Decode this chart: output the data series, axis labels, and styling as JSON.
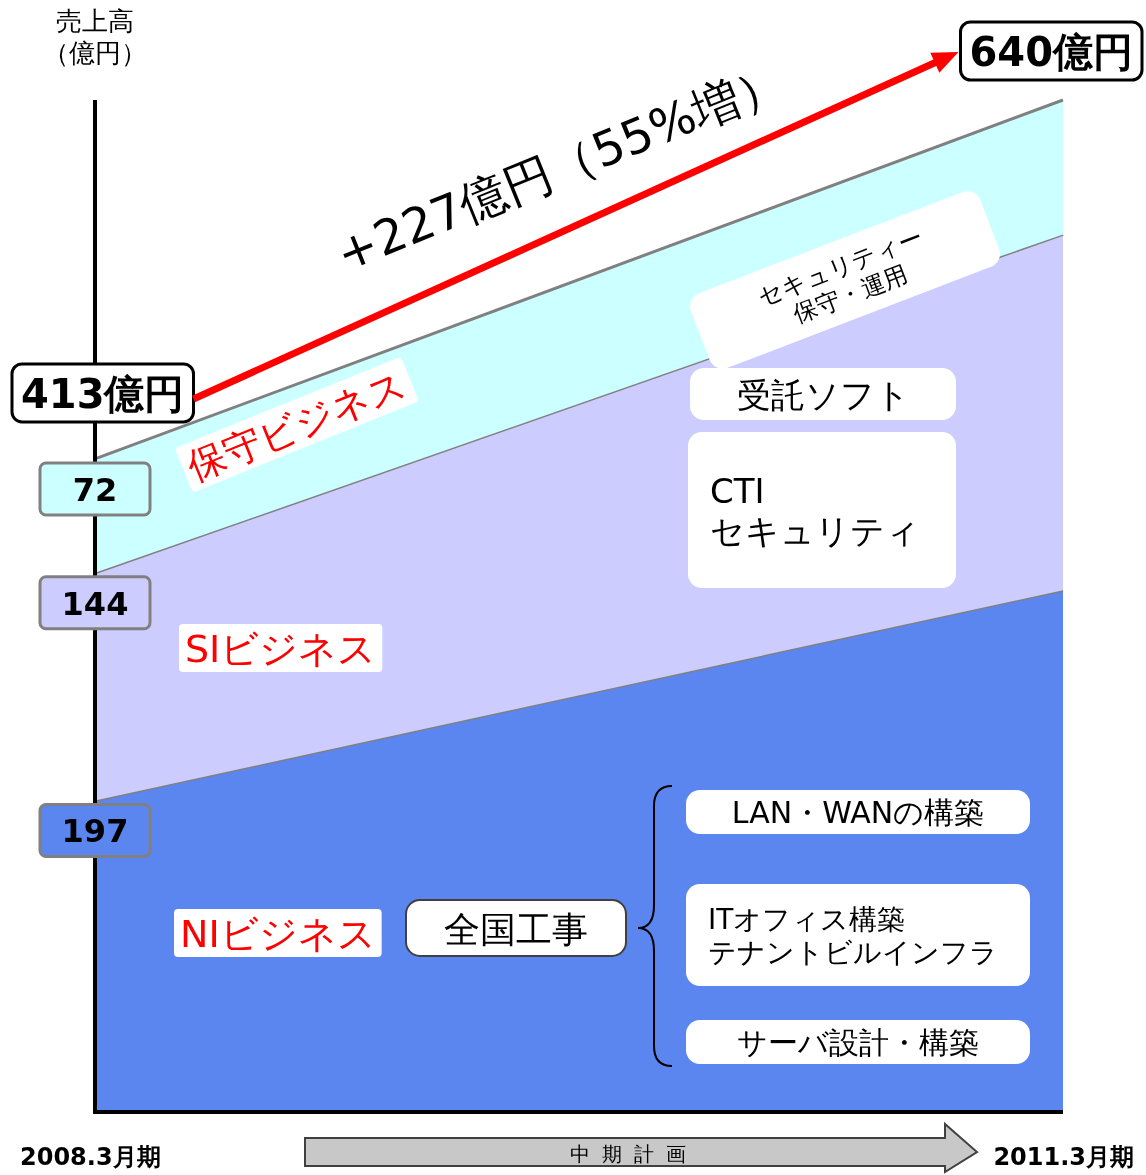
{
  "chart_data": {
    "type": "area",
    "stacked": true,
    "ylabel": "売上高（億円）",
    "categories": [
      "2008.3月期",
      "2011.3月期"
    ],
    "ylim": [
      0,
      640
    ],
    "series": [
      {
        "name": "NIビジネス",
        "color": "#5b86f0",
        "values": [
          197,
          330
        ],
        "value_labels": [
          "197",
          null
        ]
      },
      {
        "name": "SIビジネス",
        "color": "#ccccff",
        "values": [
          144,
          225
        ],
        "value_labels": [
          "144",
          null
        ]
      },
      {
        "name": "保守ビジネス",
        "color": "#ccffff",
        "values": [
          72,
          85
        ],
        "value_labels": [
          "72",
          null
        ]
      }
    ],
    "annotations": [
      {
        "text": "413億円",
        "x": "2008.3月期",
        "y": 413
      },
      {
        "text": "640億円",
        "x": "2011.3月期",
        "y": 640
      },
      "+227億円（55%増）",
      "セキュリティー保守・運用",
      "受託ソフト",
      "CTIセキュリティ",
      "LAN・WANの構築",
      "全国工事",
      "ITオフィス構築テナントビルインフラ",
      "サーバ設計・構築",
      "中期計画"
    ]
  }
}
